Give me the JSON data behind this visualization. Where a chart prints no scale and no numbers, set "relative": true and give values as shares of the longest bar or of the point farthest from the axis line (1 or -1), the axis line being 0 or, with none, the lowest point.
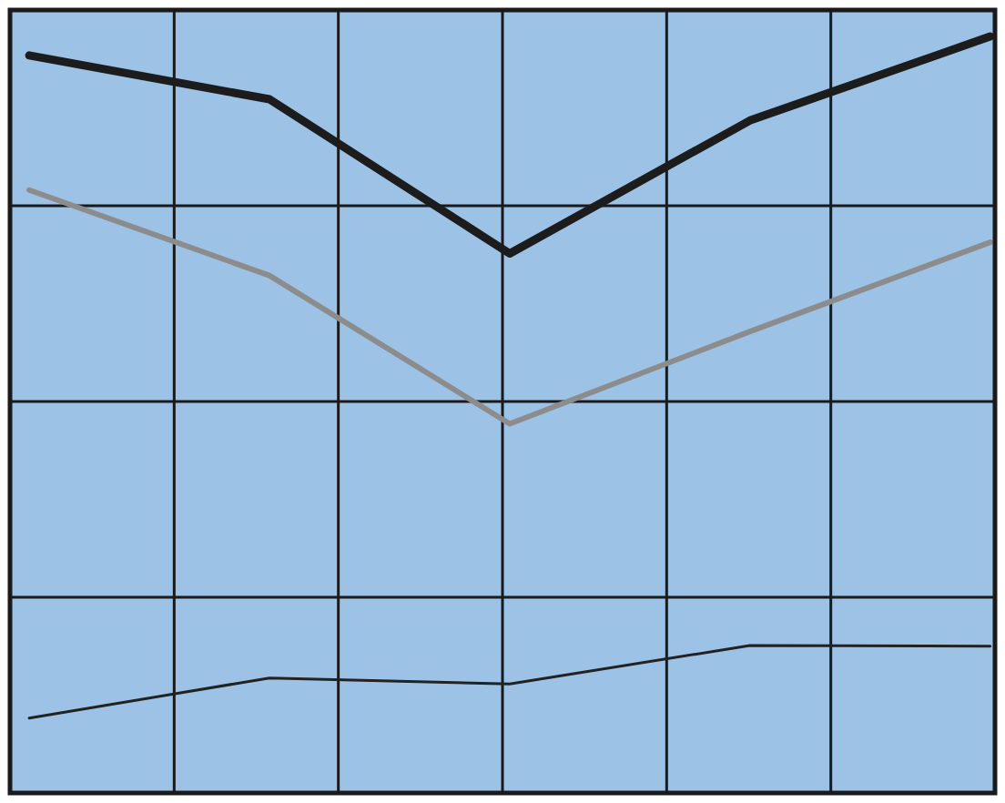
{
  "chart_data": {
    "type": "line",
    "relative": true,
    "grid": true,
    "legend": false,
    "marker": "none",
    "line_style": "solid",
    "categories": [
      null,
      null,
      null,
      null,
      null
    ],
    "series": [
      {
        "color": "#1c1c1c",
        "values": [
          0.975,
          0.917,
          0.713,
          0.889,
          1
        ]
      },
      {
        "color": "#8c8c8c",
        "values": [
          0.797,
          0.684,
          0.488,
          0.61,
          0.728
        ]
      },
      {
        "color": "#222222",
        "values": [
          0.099,
          0.152,
          0.144,
          0.195,
          0.194
        ]
      }
    ]
  }
}
